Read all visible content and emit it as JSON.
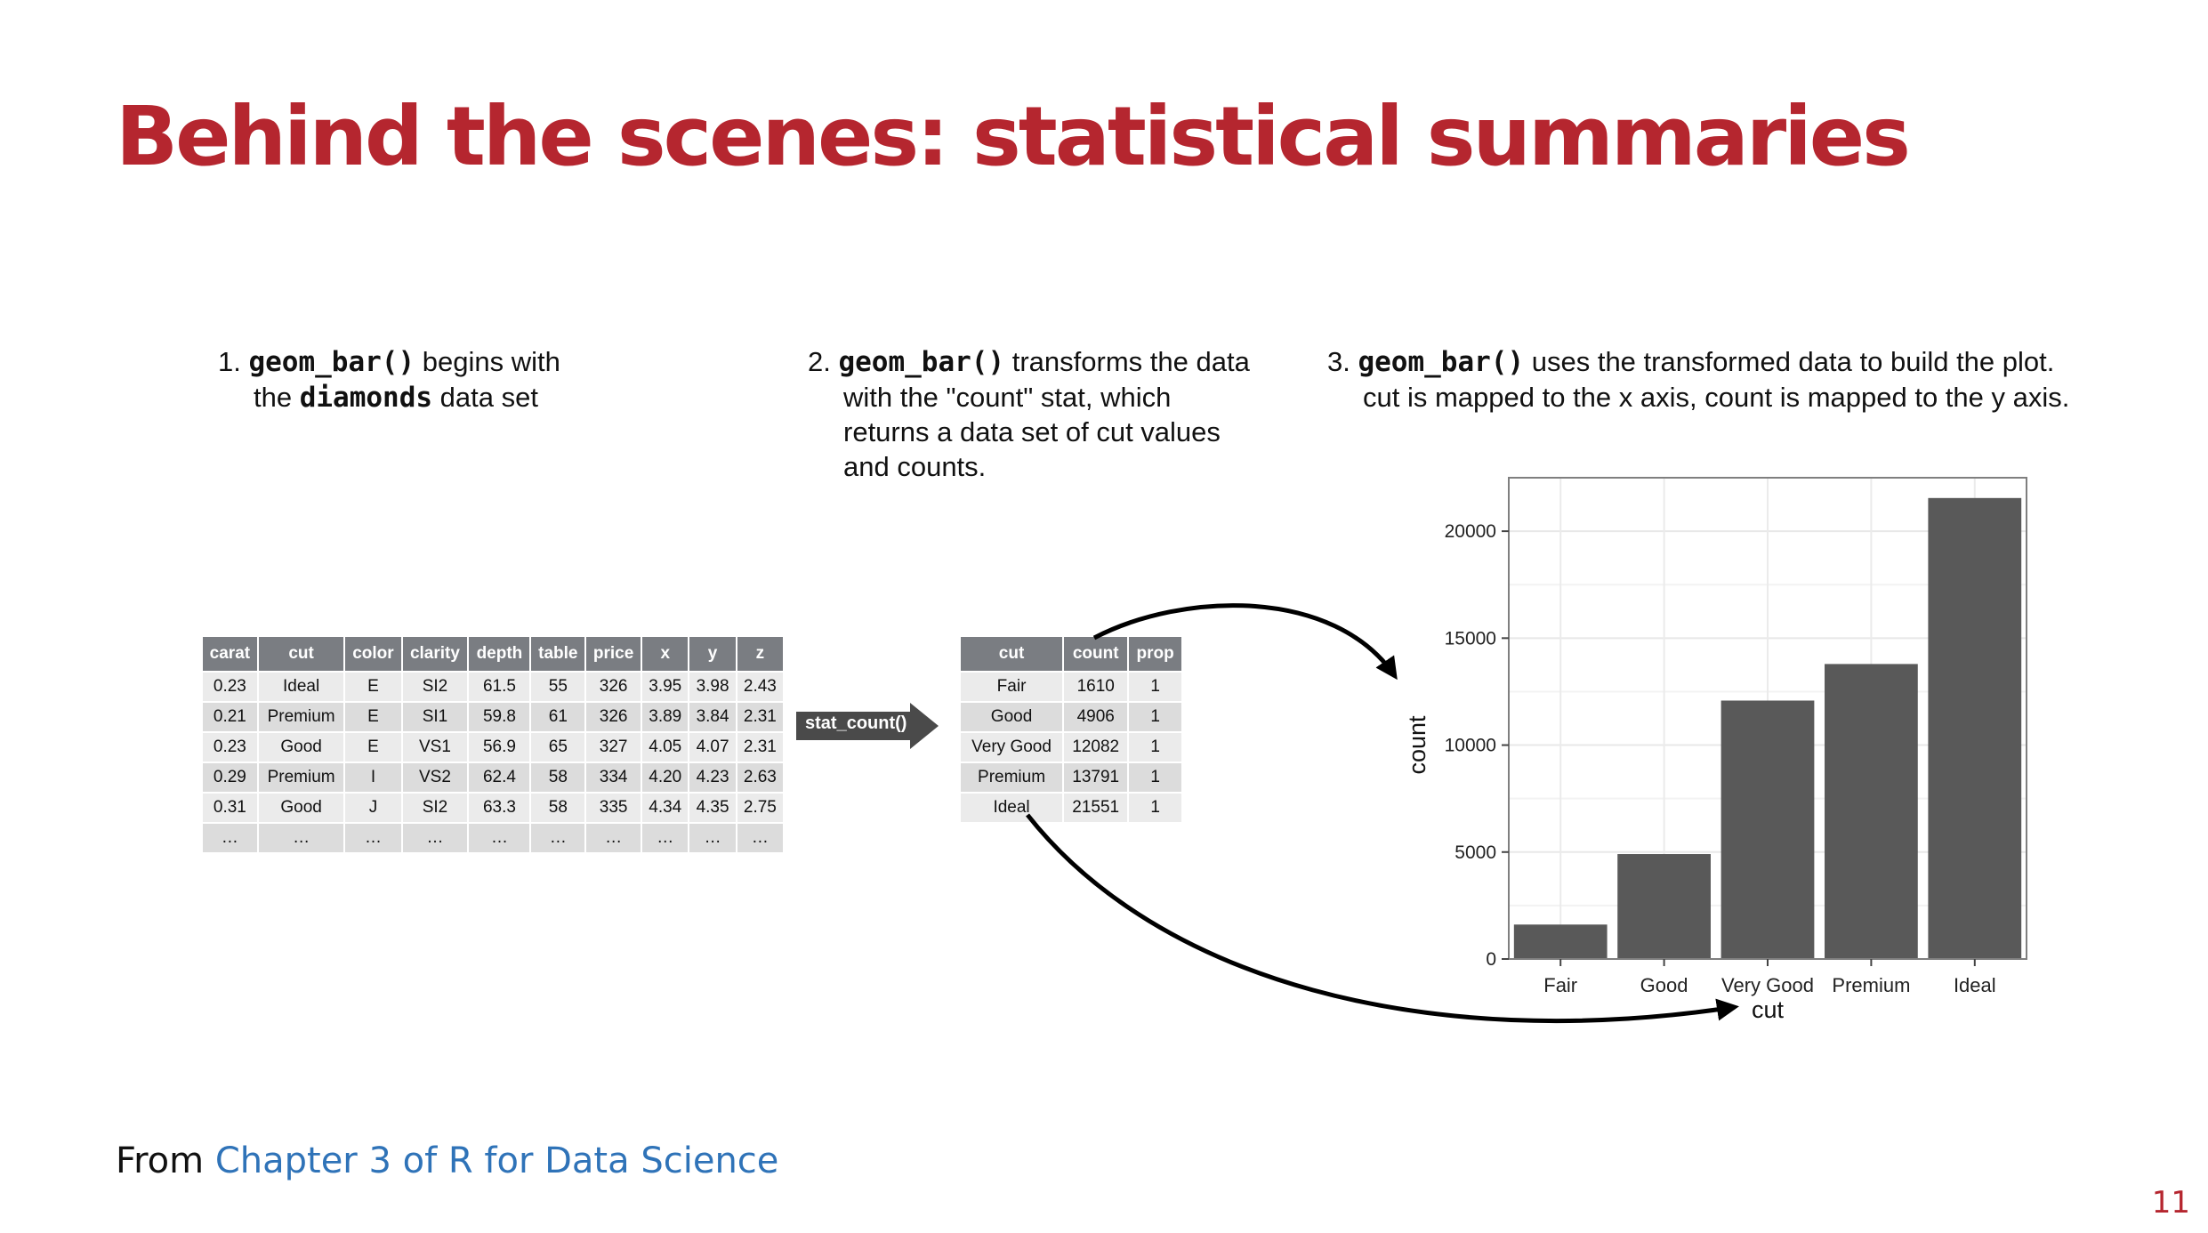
{
  "title": "Behind the scenes: statistical summaries",
  "captions": {
    "step1": {
      "num": "1.",
      "code1": "geom_bar()",
      "t1": " begins with",
      "t2": "the ",
      "code2": "diamonds",
      "t3": " data set"
    },
    "step2": {
      "num": "2.",
      "code1": "geom_bar()",
      "t1": " transforms the data with the \"count\" stat, which returns a data set of cut values and counts."
    },
    "step3": {
      "num": "3.",
      "code1": "geom_bar()",
      "t1": " uses the transformed data to build the plot. cut is mapped to the x axis, count is mapped to the y axis."
    }
  },
  "diamonds_table": {
    "headers": [
      "carat",
      "cut",
      "color",
      "clarity",
      "depth",
      "table",
      "price",
      "x",
      "y",
      "z"
    ],
    "rows": [
      [
        "0.23",
        "Ideal",
        "E",
        "SI2",
        "61.5",
        "55",
        "326",
        "3.95",
        "3.98",
        "2.43"
      ],
      [
        "0.21",
        "Premium",
        "E",
        "SI1",
        "59.8",
        "61",
        "326",
        "3.89",
        "3.84",
        "2.31"
      ],
      [
        "0.23",
        "Good",
        "E",
        "VS1",
        "56.9",
        "65",
        "327",
        "4.05",
        "4.07",
        "2.31"
      ],
      [
        "0.29",
        "Premium",
        "I",
        "VS2",
        "62.4",
        "58",
        "334",
        "4.20",
        "4.23",
        "2.63"
      ],
      [
        "0.31",
        "Good",
        "J",
        "SI2",
        "63.3",
        "58",
        "335",
        "4.34",
        "4.35",
        "2.75"
      ],
      [
        "…",
        "…",
        "…",
        "…",
        "…",
        "…",
        "…",
        "…",
        "…",
        "…"
      ]
    ]
  },
  "stat_label": "stat_count()",
  "count_table": {
    "headers": [
      "cut",
      "count",
      "prop"
    ],
    "rows": [
      [
        "Fair",
        "1610",
        "1"
      ],
      [
        "Good",
        "4906",
        "1"
      ],
      [
        "Very Good",
        "12082",
        "1"
      ],
      [
        "Premium",
        "13791",
        "1"
      ],
      [
        "Ideal",
        "21551",
        "1"
      ]
    ]
  },
  "chart_data": {
    "type": "bar",
    "categories": [
      "Fair",
      "Good",
      "Very Good",
      "Premium",
      "Ideal"
    ],
    "values": [
      1610,
      4906,
      12082,
      13791,
      21551
    ],
    "xlabel": "cut",
    "ylabel": "count",
    "ylim": [
      0,
      22500
    ],
    "yticks": [
      0,
      5000,
      10000,
      15000,
      20000
    ],
    "bar_color": "#595959",
    "grid": true
  },
  "footer": {
    "prefix": "From ",
    "link": "Chapter 3 of R for Data Science"
  },
  "page_number": "11",
  "colors": {
    "title": "#b5262f",
    "link": "#2f73b8",
    "header_bg": "#7a7d82"
  }
}
